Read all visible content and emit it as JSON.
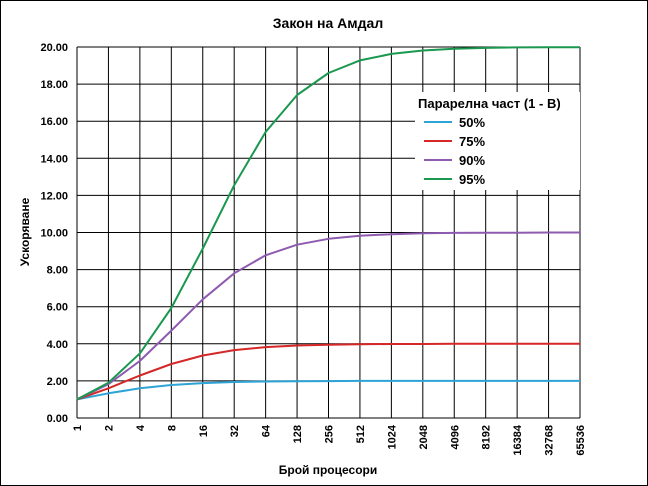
{
  "chart_data": {
    "type": "line",
    "title": "Закон на Амдал",
    "xlabel": "Брой процесори",
    "ylabel": "Ускоряване",
    "x_scale": "log2",
    "categories": [
      "1",
      "2",
      "4",
      "8",
      "16",
      "32",
      "64",
      "128",
      "256",
      "512",
      "1024",
      "2048",
      "4096",
      "8192",
      "16384",
      "32768",
      "65536"
    ],
    "ylim": [
      0,
      20
    ],
    "y_ticks": [
      "0.00",
      "2.00",
      "4.00",
      "6.00",
      "8.00",
      "10.00",
      "12.00",
      "14.00",
      "16.00",
      "18.00",
      "20.00"
    ],
    "grid": true,
    "legend": {
      "title": "Парарелна част (1 - B)",
      "placement": "top-right"
    },
    "series": [
      {
        "name": "50%",
        "color": "#2ea3d6",
        "values": [
          1.0,
          1.33,
          1.6,
          1.78,
          1.88,
          1.94,
          1.97,
          1.98,
          1.99,
          2.0,
          2.0,
          2.0,
          2.0,
          2.0,
          2.0,
          2.0,
          2.0
        ]
      },
      {
        "name": "75%",
        "color": "#d62728",
        "values": [
          1.0,
          1.6,
          2.29,
          2.91,
          3.37,
          3.66,
          3.82,
          3.91,
          3.95,
          3.98,
          3.99,
          3.99,
          4.0,
          4.0,
          4.0,
          4.0,
          4.0
        ]
      },
      {
        "name": "90%",
        "color": "#8e5bb0",
        "values": [
          1.0,
          1.82,
          3.08,
          4.71,
          6.4,
          7.8,
          8.77,
          9.34,
          9.66,
          9.83,
          9.91,
          9.96,
          9.98,
          9.99,
          9.99,
          10.0,
          10.0
        ]
      },
      {
        "name": "95%",
        "color": "#1a9850",
        "values": [
          1.0,
          1.9,
          3.48,
          5.93,
          9.14,
          12.55,
          15.42,
          17.41,
          18.6,
          19.28,
          19.63,
          19.81,
          19.91,
          19.95,
          19.98,
          19.99,
          19.99
        ]
      }
    ]
  }
}
